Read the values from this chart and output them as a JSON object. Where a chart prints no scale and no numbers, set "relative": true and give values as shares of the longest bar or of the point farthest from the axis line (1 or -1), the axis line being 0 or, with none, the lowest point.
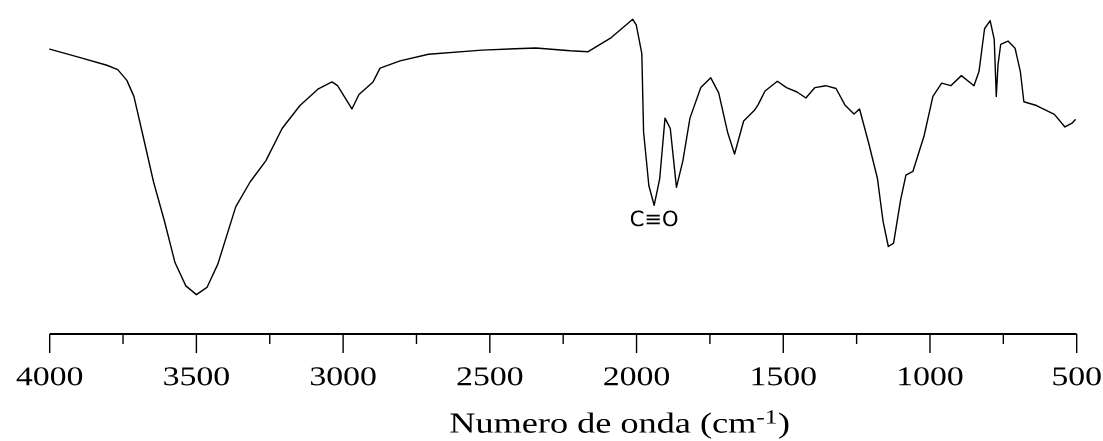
{
  "chart_data": {
    "type": "line",
    "relative": true,
    "marker": "none",
    "line_style": "solid",
    "xlabel": "Numero de onda (cm$^{-1}$)",
    "xlim": [
      4000,
      500
    ],
    "xticks": [
      4000,
      {
        "value": 3750,
        "label": null
      },
      3500,
      {
        "value": 3250,
        "label": null
      },
      3000,
      {
        "value": 2750,
        "label": null
      },
      2500,
      {
        "value": 2250,
        "label": null
      },
      2000,
      {
        "value": 1750,
        "label": null
      },
      1500,
      {
        "value": 1250,
        "label": null
      },
      1000,
      {
        "value": 750,
        "label": null
      },
      500
    ],
    "x": [
      4000,
      3902,
      3805,
      3768,
      3737,
      3713,
      3682,
      3646,
      3609,
      3573,
      3536,
      3500,
      3464,
      3427,
      3366,
      3317,
      3263,
      3208,
      3147,
      3086,
      3038,
      3019,
      2970,
      2946,
      2898,
      2874,
      2806,
      2709,
      2527,
      2343,
      2226,
      2165,
      2086,
      2013,
      2001,
      1982,
      1976,
      1958,
      1940,
      1921,
      1903,
      1885,
      1864,
      1842,
      1818,
      1781,
      1747,
      1720,
      1690,
      1666,
      1635,
      1599,
      1586,
      1562,
      1520,
      1489,
      1453,
      1423,
      1392,
      1355,
      1320,
      1290,
      1259,
      1240,
      1209,
      1179,
      1160,
      1142,
      1124,
      1100,
      1082,
      1058,
      1020,
      990,
      960,
      929,
      893,
      850,
      833,
      814,
      795,
      781,
      774,
      768,
      759,
      734,
      710,
      692,
      680,
      637,
      576,
      540,
      516,
      505
    ],
    "series": [
      {
        "color": "#000000",
        "values": [
          0.905,
          0.88,
          0.854,
          0.84,
          0.806,
          0.755,
          0.63,
          0.483,
          0.359,
          0.227,
          0.153,
          0.125,
          0.148,
          0.222,
          0.404,
          0.483,
          0.551,
          0.653,
          0.726,
          0.778,
          0.801,
          0.789,
          0.715,
          0.761,
          0.801,
          0.845,
          0.868,
          0.889,
          0.902,
          0.909,
          0.9,
          0.897,
          0.942,
          1.0,
          0.982,
          0.891,
          0.642,
          0.471,
          0.409,
          0.494,
          0.686,
          0.653,
          0.466,
          0.551,
          0.686,
          0.783,
          0.814,
          0.766,
          0.642,
          0.572,
          0.677,
          0.71,
          0.728,
          0.772,
          0.803,
          0.783,
          0.769,
          0.75,
          0.783,
          0.789,
          0.78,
          0.728,
          0.699,
          0.715,
          0.607,
          0.494,
          0.359,
          0.278,
          0.289,
          0.426,
          0.505,
          0.517,
          0.63,
          0.755,
          0.797,
          0.789,
          0.821,
          0.789,
          0.834,
          0.97,
          0.996,
          0.936,
          0.755,
          0.857,
          0.92,
          0.931,
          0.908,
          0.834,
          0.738,
          0.726,
          0.698,
          0.658,
          0.67,
          0.681
        ]
      }
    ],
    "annotations": [
      {
        "text": "C≡O",
        "x": 1940,
        "y": 0.409
      }
    ]
  }
}
